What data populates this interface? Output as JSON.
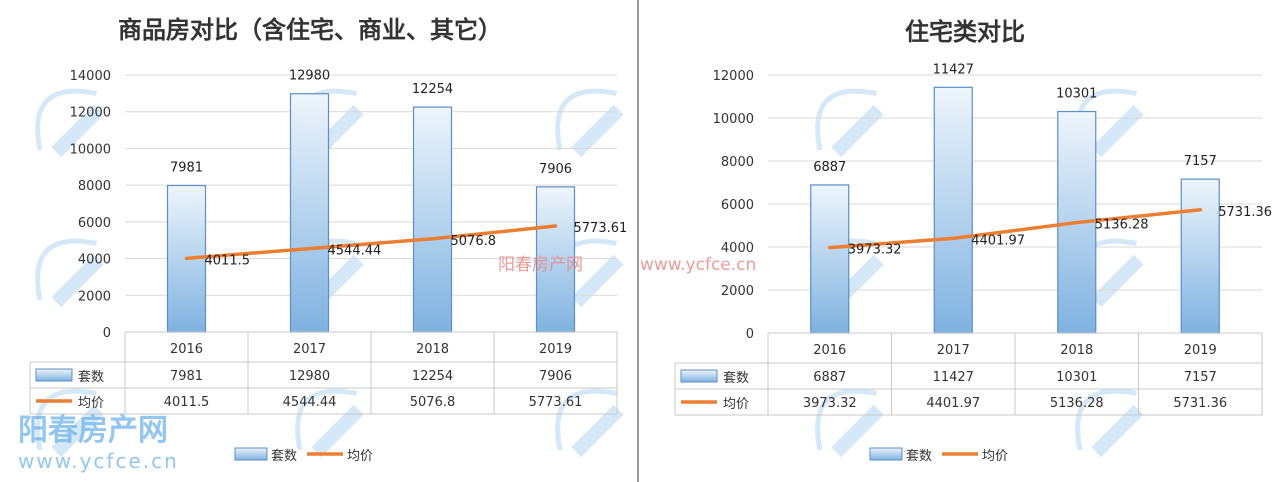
{
  "chart_data": [
    {
      "type": "bar+line",
      "title": "商品房对比（含住宅、商业、其它）",
      "categories": [
        "2016",
        "2017",
        "2018",
        "2019"
      ],
      "series": [
        {
          "name": "套数",
          "type": "bar",
          "values": [
            7981,
            12980,
            12254,
            7906
          ],
          "labels": [
            "7981",
            "12980",
            "12254",
            "7906"
          ]
        },
        {
          "name": "均价",
          "type": "line",
          "values": [
            4011.5,
            4544.44,
            5076.8,
            5773.61
          ],
          "labels": [
            "4011.5",
            "4544.44",
            "5076.8",
            "5773.61"
          ]
        }
      ],
      "ylim": [
        0,
        14000
      ],
      "yticks": [
        "0",
        "2000",
        "4000",
        "6000",
        "8000",
        "10000",
        "12000",
        "14000"
      ],
      "grid": true,
      "data_table": true,
      "legend": "bottom"
    },
    {
      "type": "bar+line",
      "title": "住宅类对比",
      "categories": [
        "2016",
        "2017",
        "2018",
        "2019"
      ],
      "series": [
        {
          "name": "套数",
          "type": "bar",
          "values": [
            6887,
            11427,
            10301,
            7157
          ],
          "labels": [
            "6887",
            "11427",
            "10301",
            "7157"
          ]
        },
        {
          "name": "均价",
          "type": "line",
          "values": [
            3973.32,
            4401.97,
            5136.28,
            5731.36
          ],
          "labels": [
            "3973.32",
            "4401.97",
            "5136.28",
            "5731.36"
          ]
        }
      ],
      "ylim": [
        0,
        12000
      ],
      "yticks": [
        "0",
        "2000",
        "4000",
        "6000",
        "8000",
        "10000",
        "12000"
      ],
      "grid": true,
      "data_table": true,
      "legend": "bottom"
    }
  ],
  "colors": {
    "bar_fill_top": "#eef5fc",
    "bar_fill_bottom": "#7fb2e0",
    "bar_stroke": "#5b8fc7",
    "line": "#ed7d31",
    "grid": "#d9d9d9"
  },
  "watermark": {
    "brand": "阳春房产网",
    "url": "www.ycfce.cn"
  }
}
